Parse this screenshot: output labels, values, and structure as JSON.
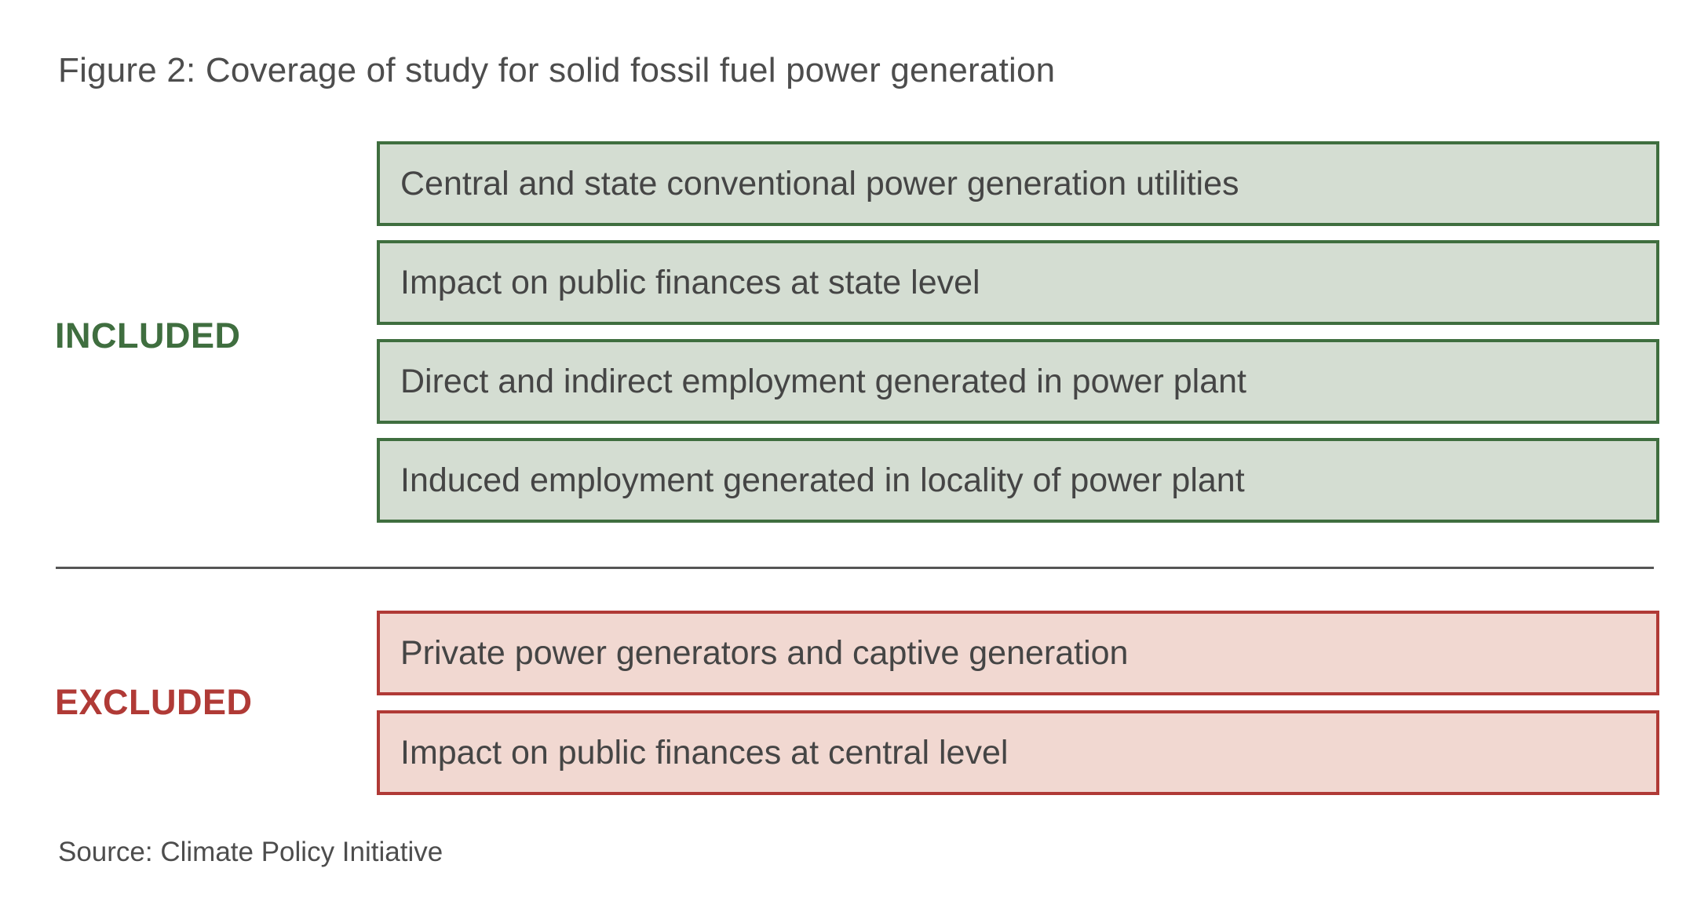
{
  "title": "Figure 2: Coverage of study for solid fossil fuel power generation",
  "colors": {
    "included": "#3f6e3f",
    "excluded": "#b03a36"
  },
  "included": {
    "label": "INCLUDED",
    "items": [
      "Central and state conventional power generation utilities",
      "Impact on public finances at state level",
      "Direct and indirect employment generated in power plant",
      "Induced employment generated in locality of power plant"
    ]
  },
  "excluded": {
    "label": "EXCLUDED",
    "items": [
      "Private power generators and captive generation",
      "Impact on public finances at central level"
    ]
  },
  "source": "Source: Climate Policy Initiative"
}
